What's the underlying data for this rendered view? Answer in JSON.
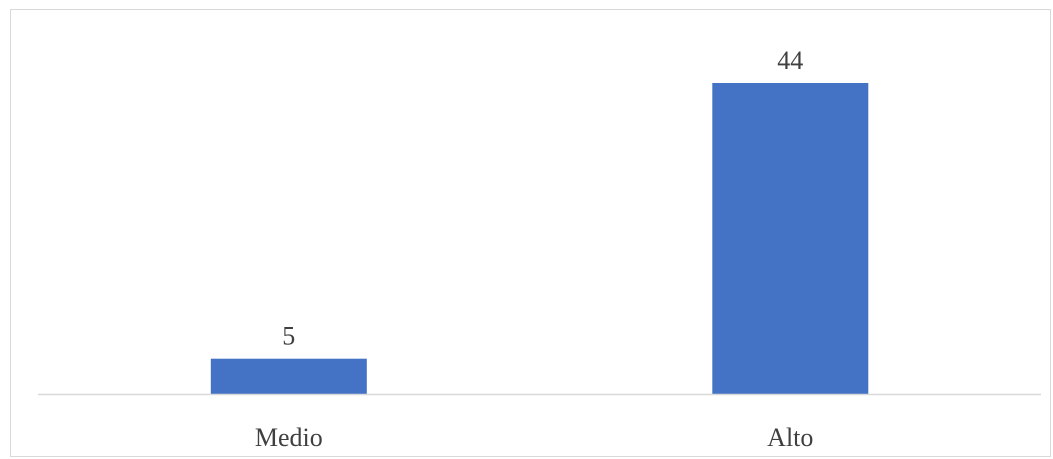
{
  "chart_data": {
    "type": "bar",
    "title": "",
    "xlabel": "",
    "ylabel": "",
    "categories": [
      "Medio",
      "Alto"
    ],
    "values": [
      5,
      44
    ],
    "data_labels": [
      "5",
      "44"
    ],
    "ylim": [
      0,
      44
    ],
    "grid": false,
    "legend": "none",
    "bar_color": "#4472c4",
    "axis_color": "#d9d9d9",
    "text_color": "#404040"
  }
}
